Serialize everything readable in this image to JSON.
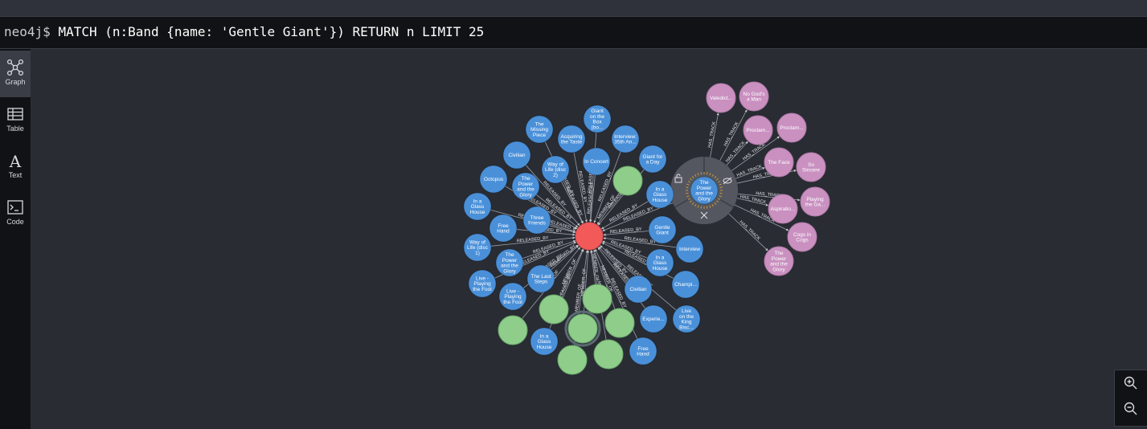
{
  "command": {
    "prompt": "neo4j$",
    "query": "MATCH (n:Band {name: 'Gentle Giant'}) RETURN n LIMIT 25"
  },
  "nav": [
    {
      "label": "Graph",
      "icon": "graph-icon",
      "active": true
    },
    {
      "label": "Table",
      "icon": "table-icon",
      "active": false
    },
    {
      "label": "Text",
      "icon": "text-icon",
      "active": false
    },
    {
      "label": "Code",
      "icon": "code-icon",
      "active": false
    }
  ],
  "zoom": {
    "in_icon": "zoom-in-icon",
    "out_icon": "zoom-out-icon"
  },
  "colors": {
    "band": "#f25a5a",
    "album": "#4a90d9",
    "person": "#8fcd8b",
    "track": "#c990c0",
    "ring": "#54575f"
  },
  "graph": {
    "band": {
      "id": "band",
      "label": ""
    },
    "albums": [
      {
        "id": "a1",
        "label": [
          "Giant",
          "on the",
          "Box",
          "(bo..."
        ]
      },
      {
        "id": "a2",
        "label": [
          "The",
          "Missing",
          "Piece"
        ]
      },
      {
        "id": "a3",
        "label": [
          "Acquiring",
          "the Taste"
        ]
      },
      {
        "id": "a4",
        "label": [
          "Interview:",
          "35th An..."
        ]
      },
      {
        "id": "a5",
        "label": [
          "Civilian"
        ]
      },
      {
        "id": "a6",
        "label": [
          "In Concert"
        ]
      },
      {
        "id": "a7",
        "label": [
          "Giant for",
          "a Day"
        ]
      },
      {
        "id": "a8",
        "label": [
          "Way of",
          "Life (disc",
          "2)"
        ]
      },
      {
        "id": "a9",
        "label": [
          "Octopus"
        ]
      },
      {
        "id": "a10",
        "label": [
          "The",
          "Power",
          "and the",
          "Glory"
        ]
      },
      {
        "id": "a11",
        "label": [
          "In a",
          "Glass",
          "House"
        ]
      },
      {
        "id": "a12",
        "label": [
          "In a",
          "Glass",
          "House"
        ]
      },
      {
        "id": "a13",
        "label": [
          "Three",
          "Friends"
        ]
      },
      {
        "id": "a14",
        "label": [
          "Free",
          "Hand"
        ]
      },
      {
        "id": "a15",
        "label": [
          "Gentle",
          "Giant"
        ]
      },
      {
        "id": "a16",
        "label": [
          "Way of",
          "Life (disc",
          "1)"
        ]
      },
      {
        "id": "a17",
        "label": [
          "Interview"
        ]
      },
      {
        "id": "a18",
        "label": [
          "The",
          "Power",
          "and the",
          "Glory"
        ]
      },
      {
        "id": "a19",
        "label": [
          "In a",
          "Glass",
          "House"
        ]
      },
      {
        "id": "a20",
        "label": [
          "Live -",
          "Playing",
          "the Fool"
        ]
      },
      {
        "id": "a21",
        "label": [
          "The Last",
          "Steps"
        ]
      },
      {
        "id": "a22",
        "label": [
          "Champi..."
        ]
      },
      {
        "id": "a23",
        "label": [
          "Live -",
          "Playing",
          "the Fool"
        ]
      },
      {
        "id": "a24",
        "label": [
          "Civilian"
        ]
      },
      {
        "id": "a25",
        "label": [
          "Experie..."
        ]
      },
      {
        "id": "a26",
        "label": [
          "Live",
          "on the",
          "King",
          "Bisc..."
        ]
      },
      {
        "id": "a27",
        "label": [
          "In a",
          "Glass",
          "House"
        ]
      },
      {
        "id": "a28",
        "label": [
          "Free",
          "Hand"
        ]
      }
    ],
    "members_count": 9,
    "selected_album": {
      "label": [
        "The",
        "Power",
        "and the",
        "Glory"
      ]
    },
    "tracks": [
      {
        "label": [
          "Valedict..."
        ]
      },
      {
        "label": [
          "No God's",
          "a Man"
        ]
      },
      {
        "label": [
          "Proclam..."
        ]
      },
      {
        "label": [
          "Proclam..."
        ]
      },
      {
        "label": [
          "The Face"
        ]
      },
      {
        "label": [
          "So",
          "Sincere"
        ]
      },
      {
        "label": [
          "Playing",
          "the Ga..."
        ]
      },
      {
        "label": [
          "Aspiratio..."
        ]
      },
      {
        "label": [
          "Cogs in",
          "Cogs"
        ]
      },
      {
        "label": [
          "The",
          "Power",
          "and the",
          "Glory"
        ]
      }
    ],
    "edge_labels": {
      "released": "RELEASED_BY",
      "member": "MEMBER_OF",
      "track": "HAS_TRACK"
    }
  }
}
